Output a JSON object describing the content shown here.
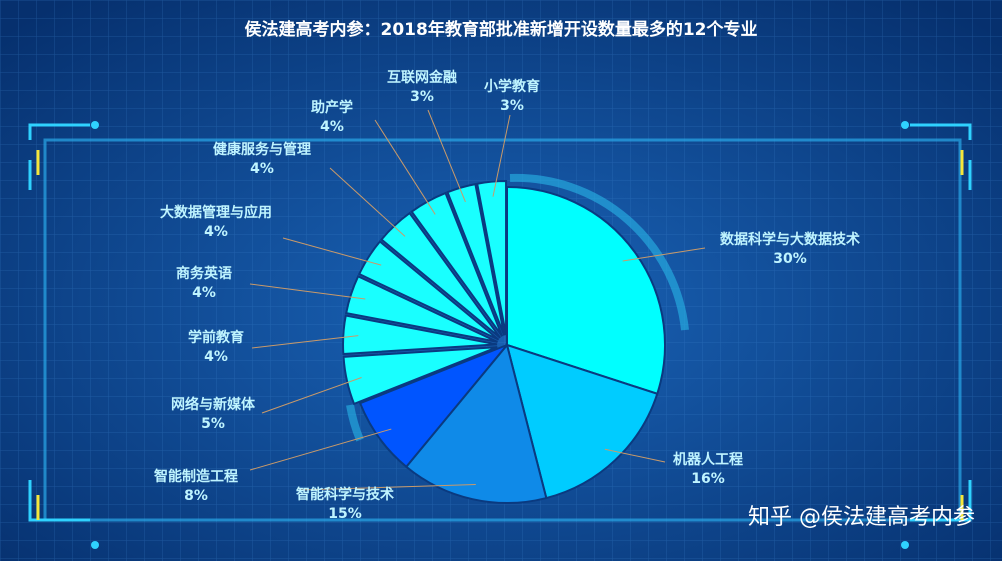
{
  "chart_data": {
    "type": "pie",
    "title": "侯法建高考内参：2018年教育部批准新增开设数量最多的12个专业",
    "categories": [
      "数据科学与大数据技术",
      "机器人工程",
      "智能科学与技术",
      "智能制造工程",
      "网络与新媒体",
      "学前教育",
      "商务英语",
      "大数据管理与应用",
      "健康服务与管理",
      "助产学",
      "互联网金融",
      "小学教育"
    ],
    "values": [
      30,
      16,
      15,
      8,
      5,
      4,
      4,
      4,
      4,
      4,
      3,
      3
    ],
    "value_labels": [
      "30%",
      "16%",
      "15%",
      "8%",
      "5%",
      "4%",
      "4%",
      "4%",
      "4%",
      "4%",
      "3%",
      "3%"
    ],
    "colors": [
      "#00ffff",
      "#00ccff",
      "#0f8ae8",
      "#0055ff",
      "#19ffff",
      "#19ffff",
      "#19ffff",
      "#19ffff",
      "#19ffff",
      "#19ffff",
      "#19ffff",
      "#19ffff"
    ],
    "watermark": "知乎 @侯法建高考内参"
  }
}
